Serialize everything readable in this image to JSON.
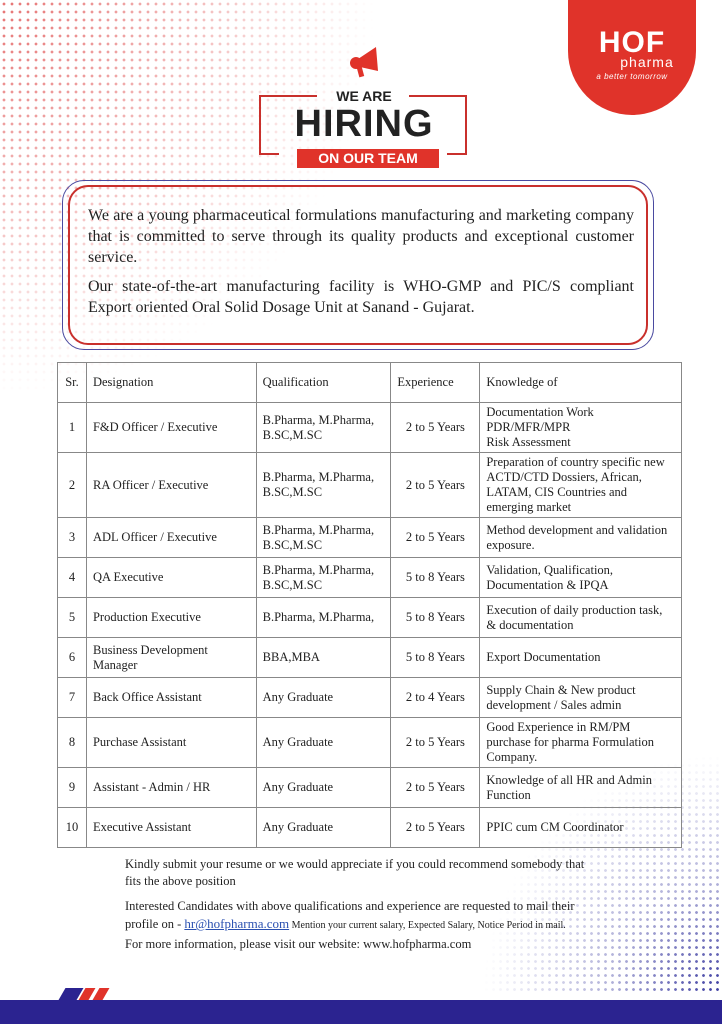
{
  "brand": {
    "name": "HOF",
    "sub": "pharma",
    "tagline": "a better tomorrow",
    "accent": "#e0332a",
    "navy": "#2b2390"
  },
  "banner": {
    "line1": "WE ARE",
    "line2": "HIRING",
    "line3": "ON OUR TEAM",
    "icon": "megaphone-icon"
  },
  "intro": {
    "p1": "We are a young pharmaceutical formulations manufacturing and marketing company that is committed to serve through its quality products and exceptional customer service.",
    "p2": "Our state-of-the-art manufacturing facility is WHO-GMP and PIC/S compliant Export oriented Oral Solid Dosage Unit at Sanand - Gujarat."
  },
  "table": {
    "headers": [
      "Sr.",
      "Designation",
      "Qualification",
      "Experience",
      "Knowledge of"
    ],
    "rows": [
      [
        "1",
        "F&D Officer  / Executive",
        "B.Pharma, M.Pharma, B.SC,M.SC",
        "2 to 5 Years",
        "Documentation Work\nPDR/MFR/MPR\nRisk Assessment"
      ],
      [
        "2",
        "RA Officer / Executive",
        "B.Pharma, M.Pharma, B.SC,M.SC",
        "2 to 5 Years",
        "Preparation of country specific new ACTD/CTD Dossiers, African, LATAM, CIS Countries and emerging market"
      ],
      [
        "3",
        "ADL Officer /  Executive",
        "B.Pharma, M.Pharma, B.SC,M.SC",
        "2 to 5 Years",
        "Method development and validation exposure."
      ],
      [
        "4",
        "QA  Executive",
        "B.Pharma, M.Pharma, B.SC,M.SC",
        "5 to 8 Years",
        "Validation, Qualification, Documentation & IPQA"
      ],
      [
        "5",
        "Production  Executive",
        "B.Pharma, M.Pharma,",
        "5 to 8 Years",
        "Execution of daily production task, & documentation"
      ],
      [
        "6",
        "Business Development Manager",
        "BBA,MBA",
        "5 to 8 Years",
        "Export Documentation"
      ],
      [
        "7",
        "Back Office Assistant",
        "Any Graduate",
        "2 to 4 Years",
        "Supply Chain & New product development / Sales admin"
      ],
      [
        "8",
        "Purchase Assistant",
        "Any Graduate",
        "2 to 5 Years",
        "Good Experience in RM/PM purchase for pharma Formulation Company."
      ],
      [
        "9",
        "Assistant -  Admin / HR",
        "Any Graduate",
        "2 to 5 Years",
        "Knowledge of all HR and Admin Function"
      ],
      [
        "10",
        "Executive Assistant",
        "Any Graduate",
        "2 to 5 Years",
        "PPIC cum CM Coordinator"
      ]
    ]
  },
  "footer": {
    "p1": "Kindly submit your resume or we would appreciate if you could recommend somebody that fits the above position",
    "p2a": "Interested Candidates with above qualifications and experience are requested to mail their profile on - ",
    "email": "hr@hofpharma.com",
    "p2b": " Mention your current salary, Expected Salary, Notice Period in mail.",
    "p3": "For more information, please visit our website: www.hofpharma.com"
  }
}
